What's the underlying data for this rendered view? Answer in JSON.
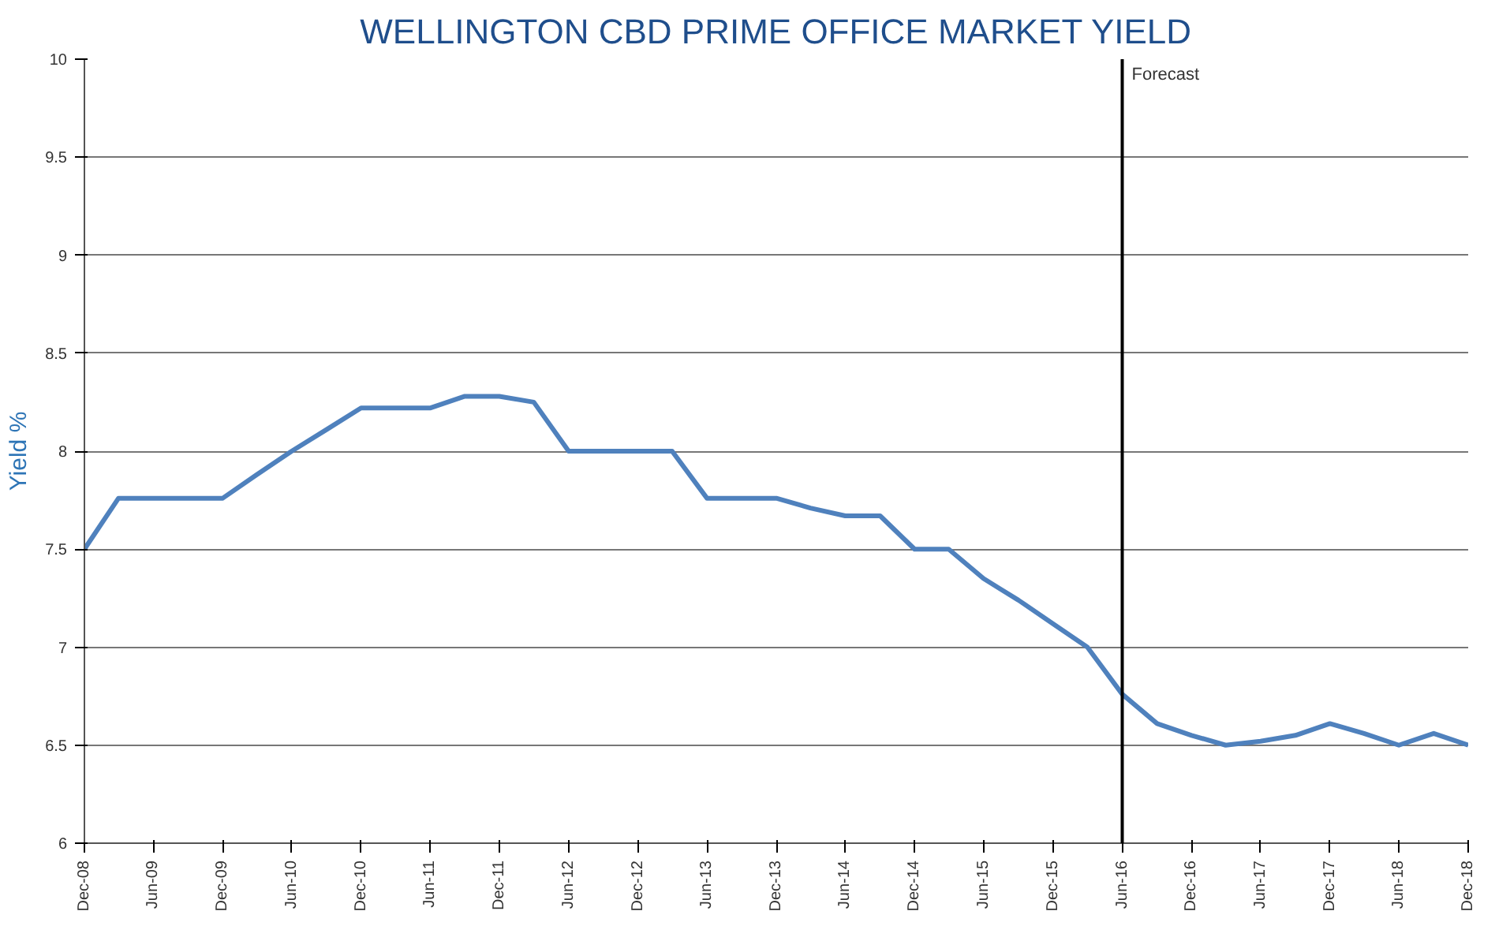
{
  "chart_data": {
    "type": "line",
    "title": "WELLINGTON CBD PRIME OFFICE MARKET YIELD",
    "ylabel": "Yield %",
    "x": [
      "2008-12",
      "2009-03",
      "2009-06",
      "2009-09",
      "2009-12",
      "2010-03",
      "2010-06",
      "2010-09",
      "2010-12",
      "2011-03",
      "2011-06",
      "2011-09",
      "2011-12",
      "2012-03",
      "2012-06",
      "2012-09",
      "2012-12",
      "2013-03",
      "2013-06",
      "2013-09",
      "2013-12",
      "2014-03",
      "2014-06",
      "2014-09",
      "2014-12",
      "2015-03",
      "2015-06",
      "2015-09",
      "2015-12",
      "2016-03",
      "2016-06",
      "2016-09",
      "2016-12",
      "2017-03",
      "2017-06",
      "2017-09",
      "2017-12",
      "2018-03",
      "2018-06",
      "2018-09",
      "2018-12"
    ],
    "series": [
      {
        "color": "#4f81bd",
        "values": [
          7.5,
          7.76,
          7.76,
          7.76,
          7.76,
          7.88,
          8.0,
          8.11,
          8.22,
          8.22,
          8.22,
          8.28,
          8.28,
          8.25,
          8.0,
          8.0,
          8.0,
          8.0,
          7.76,
          7.76,
          7.76,
          7.71,
          7.67,
          7.67,
          7.5,
          7.5,
          7.35,
          7.24,
          7.12,
          7.0,
          6.76,
          6.61,
          6.55,
          6.5,
          6.52,
          6.55,
          6.61,
          6.56,
          6.5,
          6.56,
          6.5
        ]
      }
    ],
    "xlim": [
      "2008-12",
      "2018-12"
    ],
    "xticks": [
      {
        "value": "2008-12",
        "label": "Dec-08"
      },
      {
        "value": "2009-06",
        "label": "Jun-09"
      },
      {
        "value": "2009-12",
        "label": "Dec-09"
      },
      {
        "value": "2010-06",
        "label": "Jun-10"
      },
      {
        "value": "2010-12",
        "label": "Dec-10"
      },
      {
        "value": "2011-06",
        "label": "Jun-11"
      },
      {
        "value": "2011-12",
        "label": "Dec-11"
      },
      {
        "value": "2012-06",
        "label": "Jun-12"
      },
      {
        "value": "2012-12",
        "label": "Dec-12"
      },
      {
        "value": "2013-06",
        "label": "Jun-13"
      },
      {
        "value": "2013-12",
        "label": "Dec-13"
      },
      {
        "value": "2014-06",
        "label": "Jun-14"
      },
      {
        "value": "2014-12",
        "label": "Dec-14"
      },
      {
        "value": "2015-06",
        "label": "Jun-15"
      },
      {
        "value": "2015-12",
        "label": "Dec-15"
      },
      {
        "value": "2016-06",
        "label": "Jun-16"
      },
      {
        "value": "2016-12",
        "label": "Dec-16"
      },
      {
        "value": "2017-06",
        "label": "Jun-17"
      },
      {
        "value": "2017-12",
        "label": "Dec-17"
      },
      {
        "value": "2018-06",
        "label": "Jun-18"
      },
      {
        "value": "2018-12",
        "label": "Dec-18"
      }
    ],
    "ylim": [
      6,
      10
    ],
    "yticks": [
      6,
      6.5,
      7,
      7.5,
      8,
      8.5,
      9,
      9.5,
      10
    ],
    "ref_lines": [
      {
        "axis": "x",
        "value": "2016-06",
        "label": "Forecast",
        "color": "#000000"
      }
    ],
    "grid": "y",
    "marker": "none",
    "line_style": "solid"
  }
}
